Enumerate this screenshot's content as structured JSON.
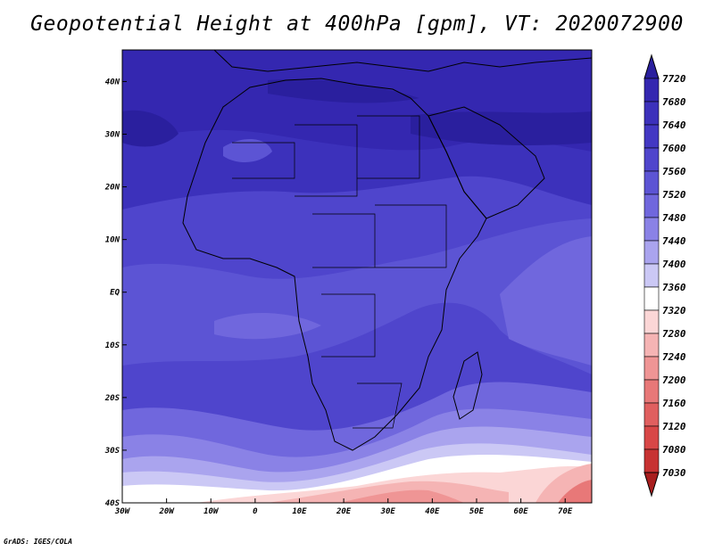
{
  "title": "Geopotential Height at 400hPa [gpm], VT: 2020072900",
  "credit": "GrADS: IGES/COLA",
  "map": {
    "lon_range": [
      -30,
      76
    ],
    "lat_range": [
      -40,
      46
    ],
    "x_ticks": [
      "30W",
      "20W",
      "10W",
      "0",
      "10E",
      "20E",
      "30E",
      "40E",
      "50E",
      "60E",
      "70E"
    ],
    "x_tick_values": [
      -30,
      -20,
      -10,
      0,
      10,
      20,
      30,
      40,
      50,
      60,
      70
    ],
    "y_ticks": [
      "40N",
      "30N",
      "20N",
      "10N",
      "EQ",
      "10S",
      "20S",
      "30S",
      "40S"
    ],
    "y_tick_values": [
      40,
      30,
      20,
      10,
      0,
      -10,
      -20,
      -30,
      -40
    ]
  },
  "colorbar": {
    "levels": [
      "7720",
      "7680",
      "7640",
      "7600",
      "7560",
      "7520",
      "7480",
      "7440",
      "7400",
      "7360",
      "7320",
      "7280",
      "7240",
      "7200",
      "7160",
      "7120",
      "7080",
      "7030"
    ],
    "colors": [
      "#2a1f9e",
      "#3427b0",
      "#3c31bb",
      "#4338c3",
      "#4f45cc",
      "#5c54d4",
      "#7067dd",
      "#8a82e6",
      "#aaa4ee",
      "#cbc8f5",
      "#ffffff",
      "#fbd6d6",
      "#f5b4b4",
      "#ef9595",
      "#e87878",
      "#e05f5f",
      "#d84747",
      "#c73232",
      "#a81e1e"
    ]
  }
}
